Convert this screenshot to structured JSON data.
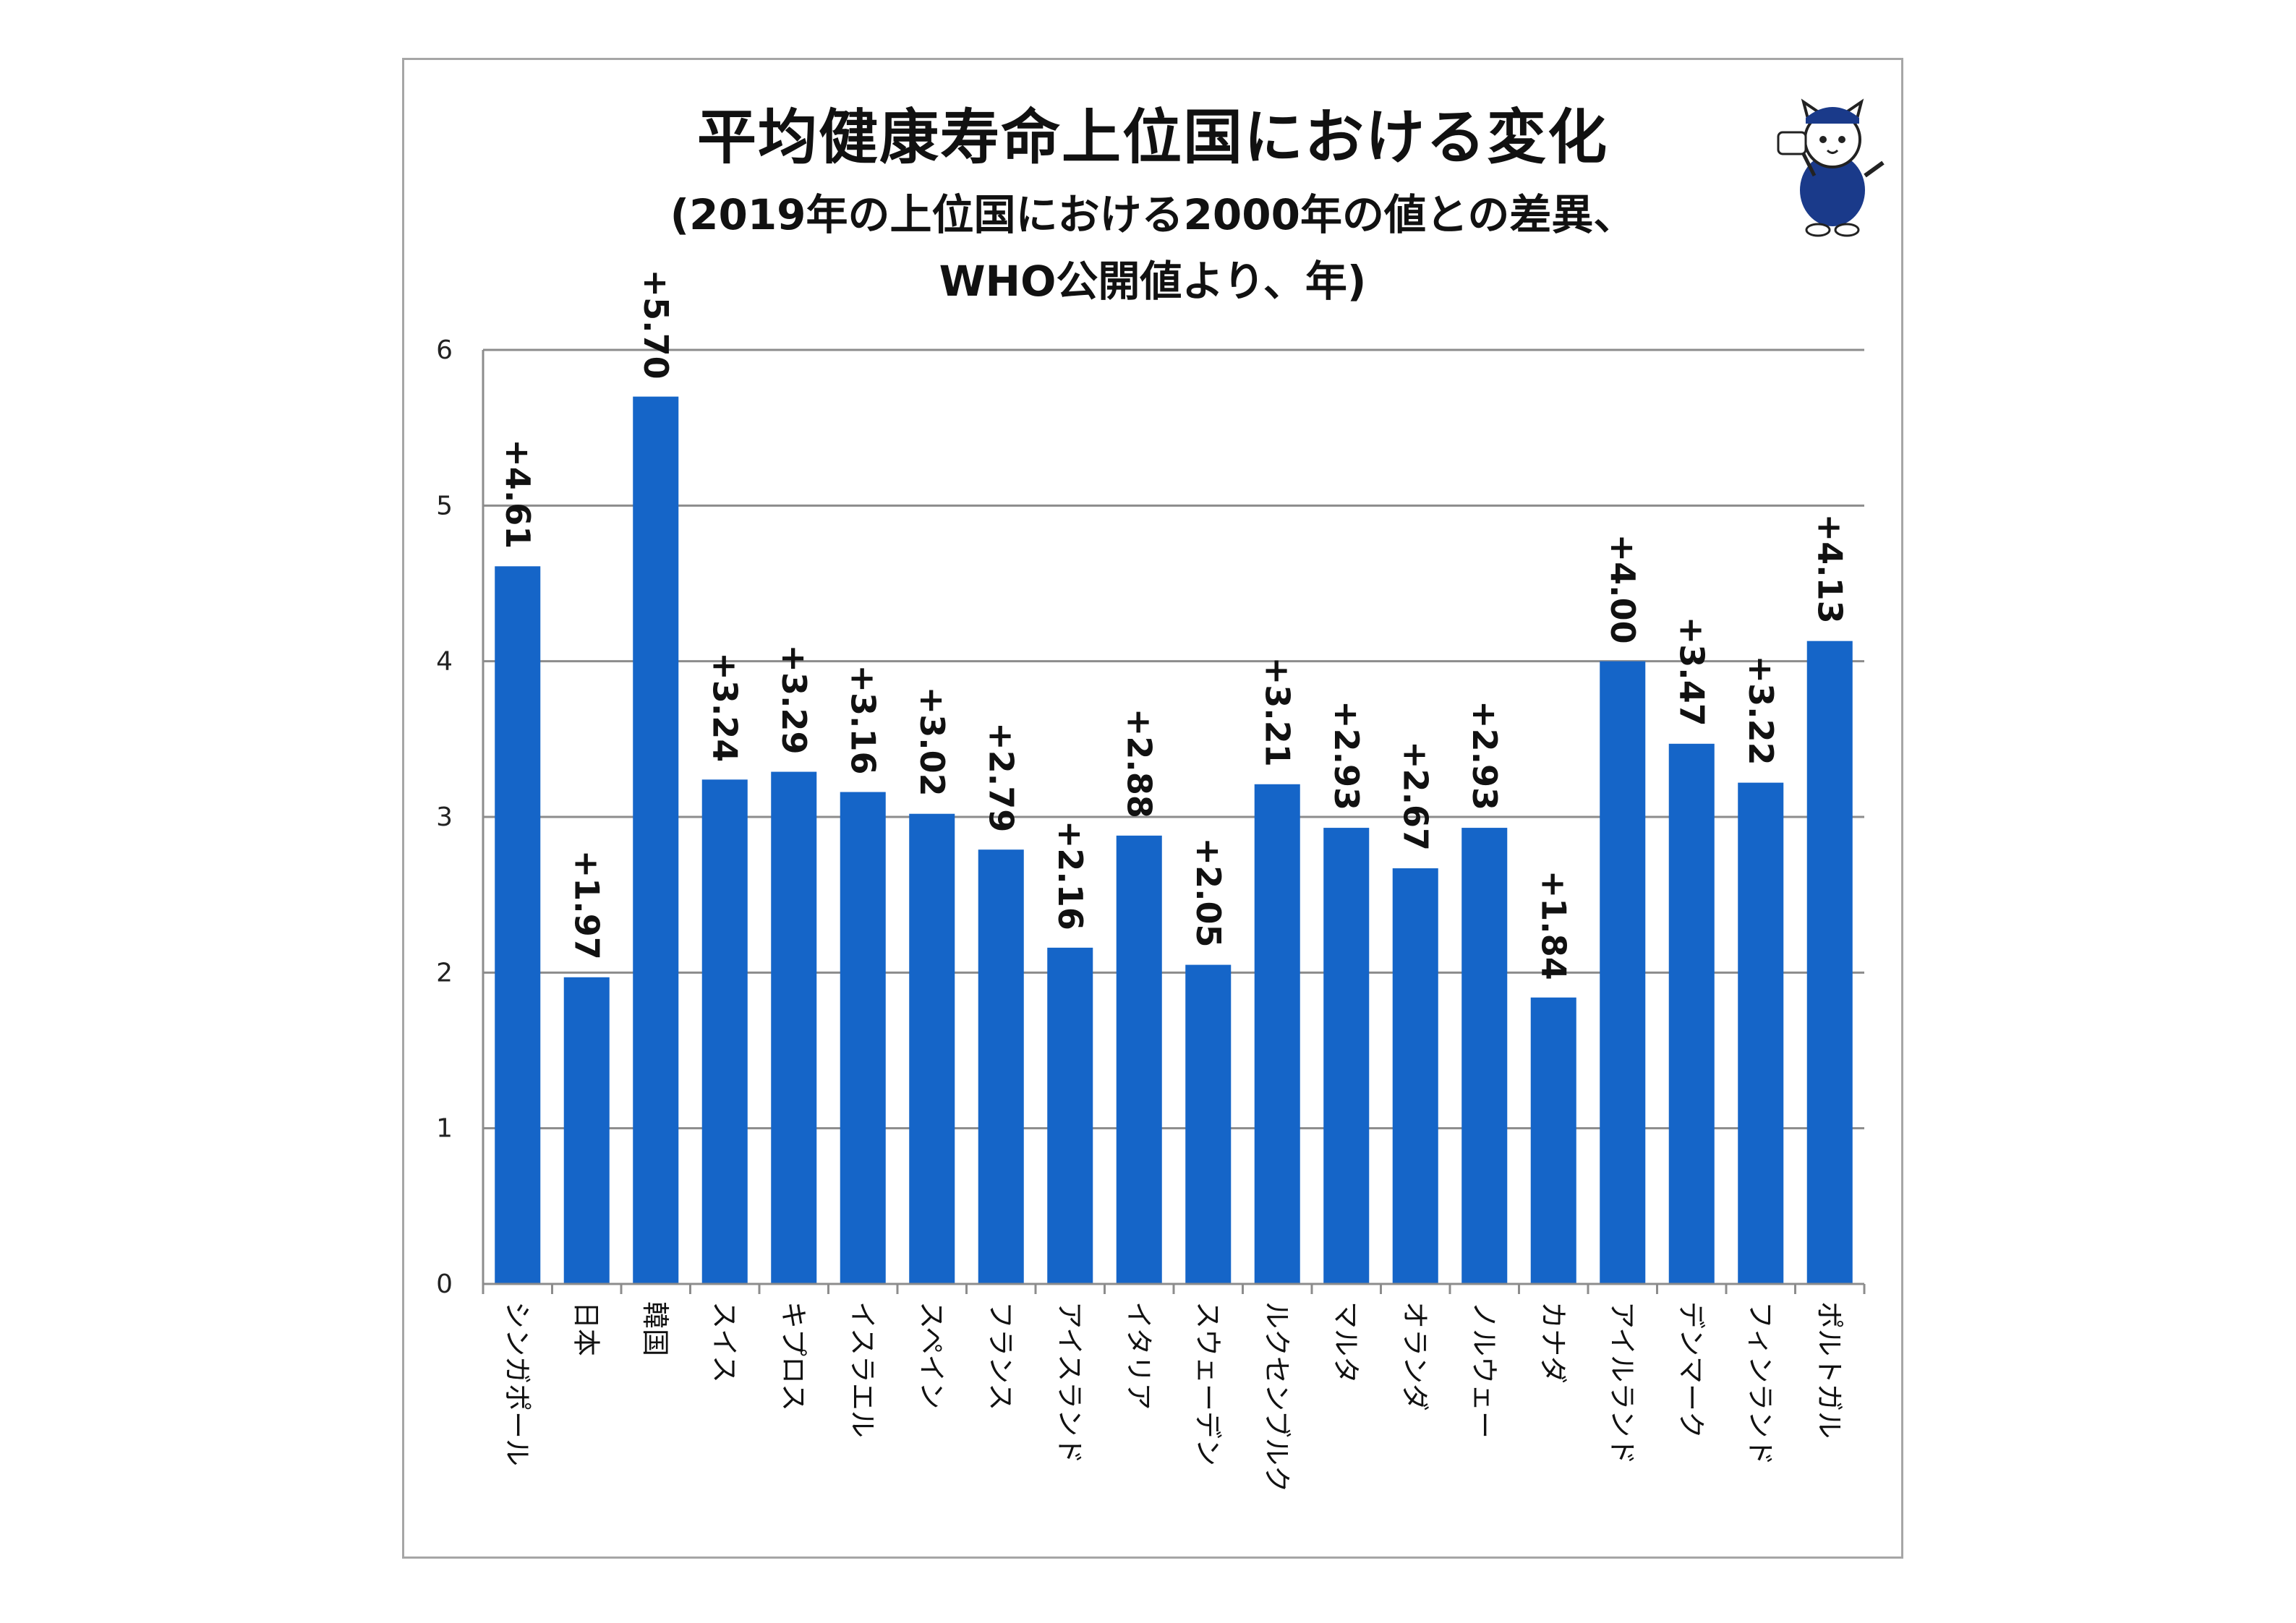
{
  "chart_data": {
    "type": "bar",
    "title": "平均健康寿命上位国における変化",
    "subtitle_lines": [
      "(2019年の上位国における2000年の値との差異、",
      "WHO公開値より、年)"
    ],
    "xlabel": "",
    "ylabel": "",
    "ylim": [
      0,
      6
    ],
    "yticks": [
      "0",
      "1",
      "2",
      "3",
      "4",
      "5",
      "6"
    ],
    "grid": true,
    "legend": "none",
    "bar_color": "#1565c8",
    "categories": [
      "シンガポール",
      "日本",
      "韓国",
      "スイス",
      "キプロス",
      "イスラエル",
      "スペイン",
      "フランス",
      "アイスランド",
      "イタリア",
      "スウェーデン",
      "ルクセンブルク",
      "マルタ",
      "オランダ",
      "ノルウェー",
      "カナダ",
      "アイルランド",
      "デンマーク",
      "フィンランド",
      "ポルトガル"
    ],
    "values": [
      4.61,
      1.97,
      5.7,
      3.24,
      3.29,
      3.16,
      3.02,
      2.79,
      2.16,
      2.88,
      2.05,
      3.21,
      2.93,
      2.67,
      2.93,
      1.84,
      4.0,
      3.47,
      3.22,
      4.13
    ],
    "data_labels": [
      "+4.61",
      "+1.97",
      "+5.70",
      "+3.24",
      "+3.29",
      "+3.16",
      "+3.02",
      "+2.79",
      "+2.16",
      "+2.88",
      "+2.05",
      "+3.21",
      "+2.93",
      "+2.67",
      "+2.93",
      "+1.84",
      "+4.00",
      "+3.47",
      "+3.22",
      "+4.13"
    ]
  },
  "mascot_icon": "cat-mascot-icon"
}
